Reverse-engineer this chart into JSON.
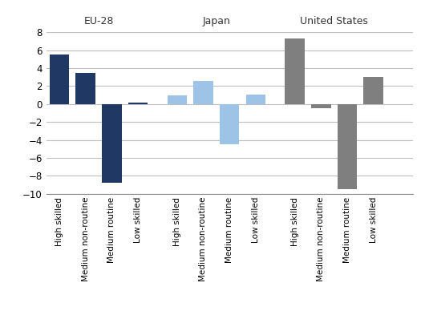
{
  "groups": [
    "EU-28",
    "Japan",
    "United States"
  ],
  "categories": [
    "High skilled",
    "Medium non-routine",
    "Medium routine",
    "Low skilled"
  ],
  "values": {
    "EU-28": [
      5.5,
      3.5,
      -8.8,
      0.2
    ],
    "Japan": [
      1.0,
      2.6,
      -4.5,
      1.1
    ],
    "United States": [
      7.3,
      -0.5,
      -9.5,
      3.0
    ]
  },
  "colors": {
    "EU-28": "#1F3864",
    "Japan": "#9DC3E6",
    "United States": "#7F7F7F"
  },
  "ylim": [
    -10,
    8
  ],
  "yticks": [
    -10,
    -8,
    -6,
    -4,
    -2,
    0,
    2,
    4,
    6,
    8
  ],
  "background_color": "#ffffff",
  "grid_color": "#bfbfbf"
}
